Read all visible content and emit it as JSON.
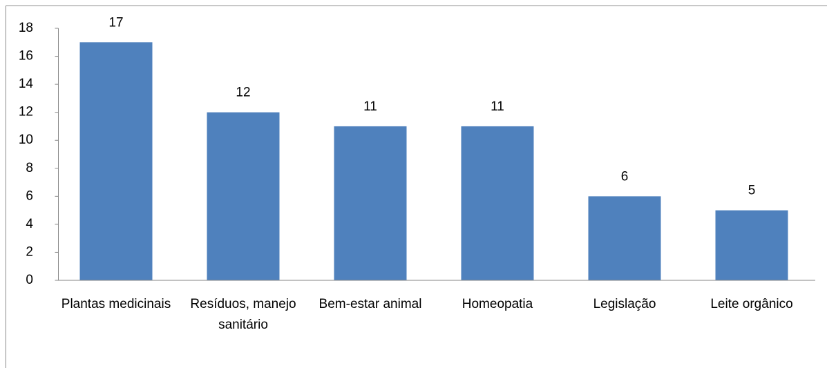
{
  "chart_data": {
    "type": "bar",
    "categories": [
      "Plantas medicinais",
      "Resíduos, manejo sanitário",
      "Bem-estar animal",
      "Homeopatia",
      "Legislação",
      "Leite orgânico"
    ],
    "values": [
      17,
      12,
      11,
      11,
      6,
      5
    ],
    "color": "#4f81bd",
    "ylim": [
      0,
      18
    ],
    "yticks": [
      0,
      2,
      4,
      6,
      8,
      10,
      12,
      14,
      16,
      18
    ],
    "grid": false
  }
}
